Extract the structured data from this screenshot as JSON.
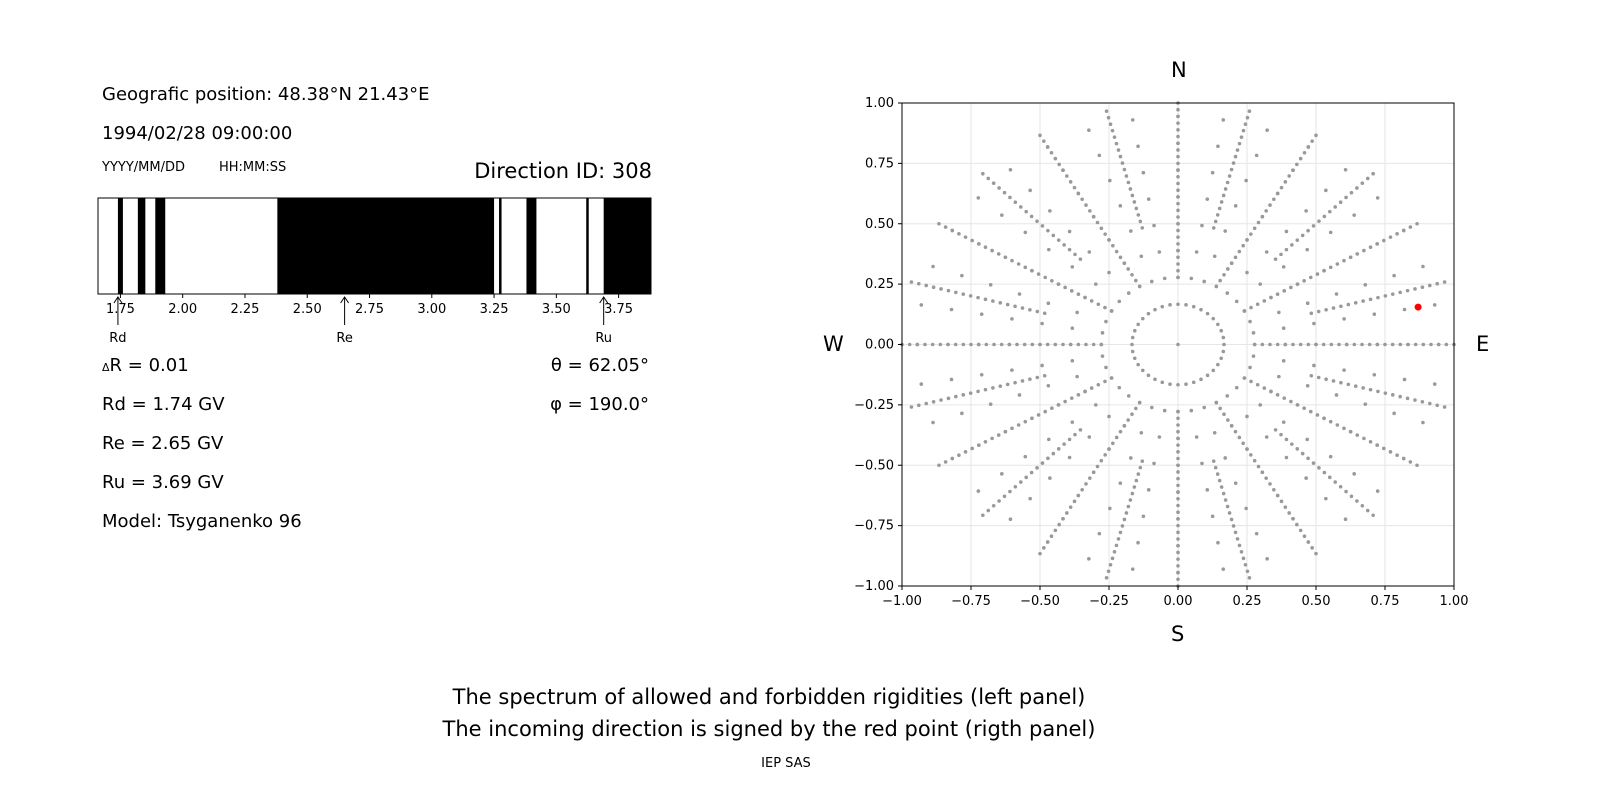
{
  "left_panel": {
    "position_text": "Geografic position: 48.38°N 21.43°E",
    "datetime_text": "1994/02/28 09:00:00",
    "date_format_hint": "YYYY/MM/DD",
    "time_format_hint": "HH:MM:SS",
    "direction_id_text": "Direction ID: 308",
    "delta_r_text": "R = 0.01",
    "delta_symbol": "Δ",
    "rd_text": "Rd = 1.74 GV",
    "re_text": "Re = 2.65 GV",
    "ru_text": "Ru = 3.69 GV",
    "model_text": "Model: Tsyganenko 96",
    "theta_text": "θ = 62.05°",
    "phi_text": "φ = 190.0°"
  },
  "right_panel": {
    "compass": {
      "north": "N",
      "south": "S",
      "west": "W",
      "east": "E"
    }
  },
  "caption": {
    "line1": "The spectrum of allowed and forbidden rigidities (left panel)",
    "line2": "The incoming direction is signed by the red point (rigth panel)",
    "credit": "IEP SAS"
  },
  "colors": {
    "forbidden": "#000000",
    "allowed": "#ffffff",
    "grid_points": "#999999",
    "highlight_point": "#ff0000"
  },
  "chart_data": [
    {
      "type": "bar",
      "name": "rigidity-spectrum",
      "xlim": [
        1.66,
        3.88
      ],
      "xticks": [
        "1.75",
        "2.00",
        "2.25",
        "2.50",
        "2.75",
        "3.00",
        "3.25",
        "3.50",
        "3.75"
      ],
      "forbidden_intervals": [
        [
          1.74,
          1.76
        ],
        [
          1.82,
          1.85
        ],
        [
          1.89,
          1.93
        ],
        [
          2.38,
          3.25
        ],
        [
          3.27,
          3.28
        ],
        [
          3.38,
          3.42
        ],
        [
          3.62,
          3.63
        ],
        [
          3.69,
          3.88
        ]
      ],
      "markers": [
        {
          "label": "Rd",
          "value": 1.74
        },
        {
          "label": "Re",
          "value": 2.65
        },
        {
          "label": "Ru",
          "value": 3.69
        }
      ]
    },
    {
      "type": "scatter",
      "name": "direction-grid",
      "xlim": [
        -1.0,
        1.0
      ],
      "ylim": [
        -1.0,
        1.0
      ],
      "xticks": [
        "−1.00",
        "−0.75",
        "−0.50",
        "−0.25",
        "0.00",
        "0.25",
        "0.50",
        "0.75",
        "1.00"
      ],
      "yticks": [
        "1.00",
        "0.75",
        "0.50",
        "0.25",
        "0.00",
        "−0.25",
        "−0.50",
        "−0.75",
        "−1.00"
      ],
      "grid": true,
      "zenith_rings": [
        0,
        15,
        25,
        35,
        45,
        55,
        65,
        75,
        85
      ],
      "zenith_max": 90,
      "azimuth_step_deg": 10,
      "spoke_step_deg": 30,
      "spoke_start_zenith": 25,
      "spoke_step_zenith": 2.5,
      "highlight": {
        "x": 0.87,
        "y": 0.155
      }
    }
  ]
}
